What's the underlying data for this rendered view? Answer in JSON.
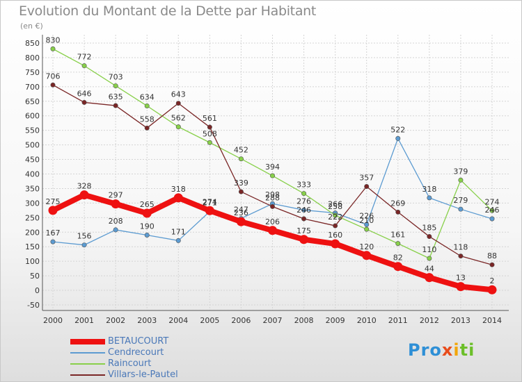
{
  "title": "Evolution du Montant de la Dette par Habitant",
  "unit": "(en €)",
  "logo": "Proxiti",
  "chart_data": {
    "type": "line",
    "x": [
      "2000",
      "2001",
      "2002",
      "2003",
      "2004",
      "2005",
      "2006",
      "2007",
      "2008",
      "2009",
      "2010",
      "2011",
      "2012",
      "2013",
      "2014"
    ],
    "ylim": [
      -50,
      850
    ],
    "yticks": [
      -50,
      0,
      50,
      100,
      150,
      200,
      250,
      300,
      350,
      400,
      450,
      500,
      550,
      600,
      650,
      700,
      750,
      800,
      850
    ],
    "grid": true,
    "legend_position": "bottom-left",
    "series": [
      {
        "name": "BETAUCOURT",
        "color": "#ee1111",
        "values": [
          275,
          328,
          297,
          265,
          318,
          274,
          236,
          206,
          175,
          160,
          120,
          82,
          44,
          13,
          2
        ],
        "labels": [
          "275",
          "328",
          "297",
          "265",
          "318",
          "274",
          "236",
          "206",
          "175",
          "160",
          "120",
          "82",
          "44",
          "13",
          "2"
        ]
      },
      {
        "name": "Cendrecourt",
        "color": "#5c9bd1",
        "values": [
          167,
          156,
          208,
          190,
          171,
          271,
          247,
          298,
          276,
          266,
          226,
          522,
          318,
          279,
          246
        ],
        "labels": [
          "167",
          "156",
          "208",
          "190",
          "171",
          "271",
          "247",
          "298",
          "276",
          "266",
          "226",
          "522",
          "318",
          "279",
          "246"
        ]
      },
      {
        "name": "Raincourt",
        "color": "#88d04a",
        "values": [
          830,
          772,
          703,
          634,
          562,
          508,
          452,
          394,
          333,
          258,
          210,
          161,
          110,
          379,
          274
        ],
        "labels": [
          "830",
          "772",
          "703",
          "634",
          "562",
          "508",
          "452",
          "394",
          "333",
          "258",
          "210",
          "161",
          "110",
          "379",
          "274"
        ]
      },
      {
        "name": "Villars-le-Pautel",
        "color": "#7a2626",
        "values": [
          706,
          646,
          635,
          558,
          643,
          561,
          339,
          288,
          246,
          222,
          357,
          269,
          185,
          118,
          88
        ],
        "labels": [
          "706",
          "646",
          "635",
          "558",
          "643",
          "561",
          "339",
          "288",
          "246",
          "222",
          "357",
          "269",
          "185",
          "118",
          "88"
        ]
      }
    ]
  }
}
